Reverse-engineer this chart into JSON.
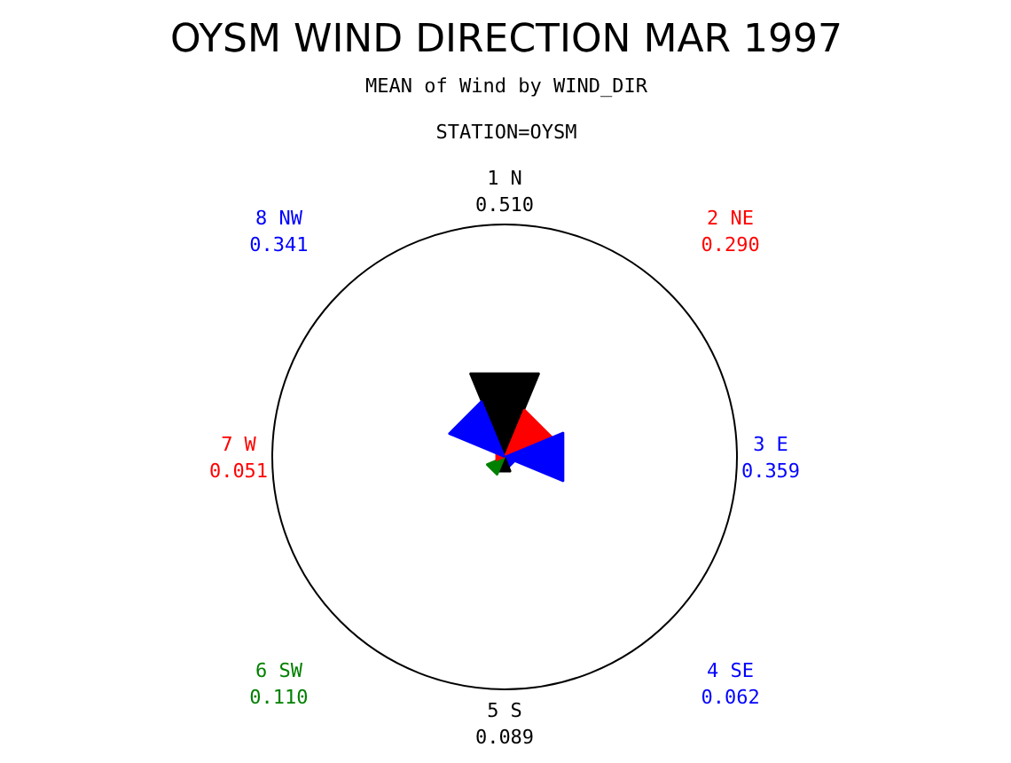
{
  "chart_data": {
    "type": "other",
    "title": "OYSM WIND DIRECTION MAR 1997",
    "subtitle": "MEAN of Wind by WIND_DIR",
    "annotations": [
      "STATION=OYSM"
    ],
    "categories": [
      "1 N",
      "2 NE",
      "3 E",
      "4 SE",
      "5 S",
      "6 SW",
      "7 W",
      "8 NW"
    ],
    "values": [
      0.51,
      0.29,
      0.359,
      0.062,
      0.089,
      0.11,
      0.051,
      0.341
    ],
    "colors": [
      "#000000",
      "#ff0000",
      "#0000ff",
      "#0000ff",
      "#000000",
      "#008000",
      "#ff0000",
      "#0000ff"
    ],
    "value_labels": [
      "0.510",
      "0.290",
      "0.359",
      "0.062",
      "0.089",
      "0.110",
      "0.051",
      "0.341"
    ]
  }
}
